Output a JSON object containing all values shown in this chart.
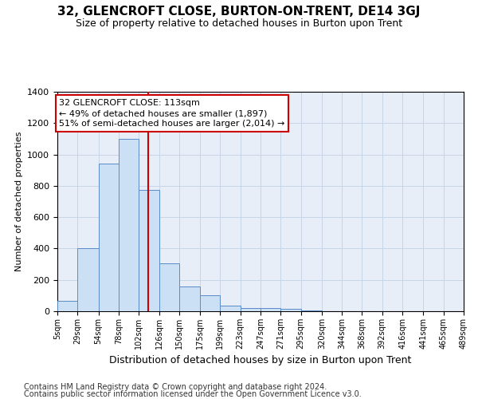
{
  "title": "32, GLENCROFT CLOSE, BURTON-ON-TRENT, DE14 3GJ",
  "subtitle": "Size of property relative to detached houses in Burton upon Trent",
  "xlabel": "Distribution of detached houses by size in Burton upon Trent",
  "ylabel": "Number of detached properties",
  "footnote1": "Contains HM Land Registry data © Crown copyright and database right 2024.",
  "footnote2": "Contains public sector information licensed under the Open Government Licence v3.0.",
  "annotation_line1": "32 GLENCROFT CLOSE: 113sqm",
  "annotation_line2": "← 49% of detached houses are smaller (1,897)",
  "annotation_line3": "51% of semi-detached houses are larger (2,014) →",
  "bin_edges": [
    5,
    29,
    54,
    78,
    102,
    126,
    150,
    175,
    199,
    223,
    247,
    271,
    295,
    320,
    344,
    368,
    392,
    416,
    441,
    465,
    489
  ],
  "bar_heights": [
    65,
    400,
    940,
    1100,
    775,
    305,
    160,
    100,
    35,
    20,
    20,
    15,
    5,
    0,
    0,
    0,
    0,
    0,
    0,
    0
  ],
  "bar_facecolor": "#cce0f5",
  "bar_edgecolor": "#5b8cc8",
  "vline_color": "#cc0000",
  "vline_x": 113,
  "ylim": [
    0,
    1400
  ],
  "yticks": [
    0,
    200,
    400,
    600,
    800,
    1000,
    1200,
    1400
  ],
  "grid_color": "#c8d4e8",
  "bg_color": "#e8eef8",
  "annotation_box_edgecolor": "#cc0000",
  "annotation_box_facecolor": "#ffffff",
  "title_fontsize": 11,
  "subtitle_fontsize": 9,
  "xlabel_fontsize": 9,
  "ylabel_fontsize": 8,
  "footnote_fontsize": 7
}
